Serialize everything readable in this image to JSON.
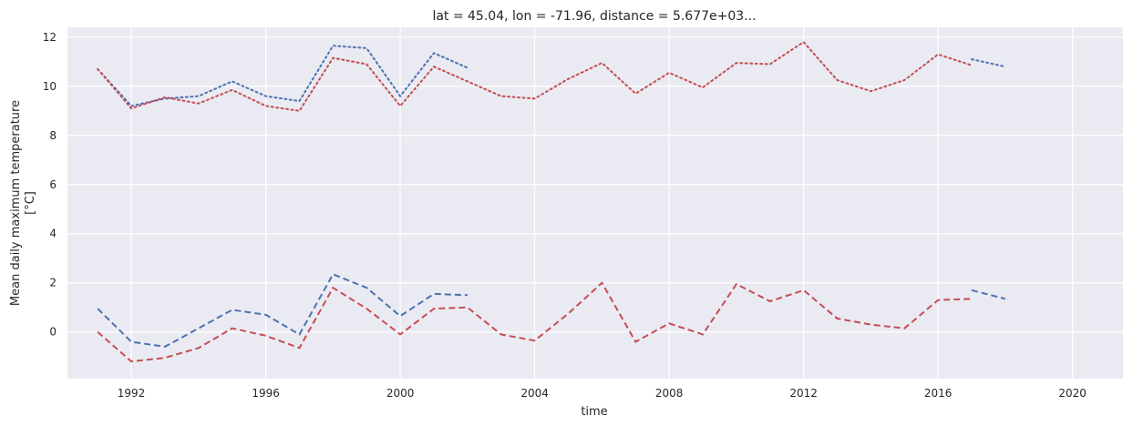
{
  "chart_data": {
    "type": "line",
    "title": "lat = 45.04, lon = -71.96, distance = 5.677e+03...",
    "xlabel": "time",
    "ylabel_lines": [
      "Mean daily maximum temperature",
      "[°C]"
    ],
    "xlim": [
      1990.1,
      2021.5
    ],
    "ylim": [
      -1.9,
      12.4
    ],
    "x_ticks": [
      1992,
      1996,
      2000,
      2004,
      2008,
      2012,
      2016,
      2020
    ],
    "y_ticks": [
      0,
      2,
      4,
      6,
      8,
      10,
      12
    ],
    "grid": true,
    "background": "#EAEAF2",
    "series": [
      {
        "color": "#4C72B0",
        "dash": "dotted",
        "x": [
          1991,
          1992,
          1993,
          1994,
          1995,
          1996,
          1997,
          1998,
          1999,
          2000,
          2001,
          2002,
          2003,
          2004,
          2005,
          2006,
          2007,
          2008,
          2009,
          2010,
          2011,
          2012,
          2013,
          2014,
          2015,
          2016,
          2017,
          2018
        ],
        "y": [
          10.7,
          9.2,
          9.5,
          9.6,
          10.2,
          9.6,
          9.4,
          11.65,
          11.55,
          9.6,
          11.35,
          10.75,
          null,
          null,
          null,
          null,
          null,
          null,
          null,
          null,
          null,
          null,
          null,
          null,
          null,
          null,
          11.1,
          10.8
        ]
      },
      {
        "color": "#C44E52",
        "dash": "dotted",
        "x": [
          1991,
          1992,
          1993,
          1994,
          1995,
          1996,
          1997,
          1998,
          1999,
          2000,
          2001,
          2002,
          2003,
          2004,
          2005,
          2006,
          2007,
          2008,
          2009,
          2010,
          2011,
          2012,
          2013,
          2014,
          2015,
          2016,
          2017,
          2018
        ],
        "y": [
          10.7,
          9.1,
          9.55,
          9.3,
          9.85,
          9.2,
          9.0,
          11.15,
          10.9,
          9.2,
          10.8,
          10.2,
          9.6,
          9.5,
          10.3,
          10.95,
          9.7,
          10.55,
          9.95,
          10.95,
          10.9,
          11.8,
          10.25,
          9.8,
          10.25,
          11.3,
          10.85,
          null
        ]
      },
      {
        "color": "#4C72B0",
        "dash": "dashed",
        "x": [
          1991,
          1992,
          1993,
          1994,
          1995,
          1996,
          1997,
          1998,
          1999,
          2000,
          2001,
          2002,
          2003,
          2004,
          2005,
          2006,
          2007,
          2008,
          2009,
          2010,
          2011,
          2012,
          2013,
          2014,
          2015,
          2016,
          2017,
          2018
        ],
        "y": [
          0.95,
          -0.4,
          -0.6,
          0.15,
          0.9,
          0.7,
          -0.1,
          2.35,
          1.8,
          0.65,
          1.55,
          1.5,
          null,
          null,
          null,
          null,
          null,
          null,
          null,
          null,
          null,
          null,
          null,
          null,
          null,
          null,
          1.7,
          1.35
        ]
      },
      {
        "color": "#C44E52",
        "dash": "dashed",
        "x": [
          1991,
          1992,
          1993,
          1994,
          1995,
          1996,
          1997,
          1998,
          1999,
          2000,
          2001,
          2002,
          2003,
          2004,
          2005,
          2006,
          2007,
          2008,
          2009,
          2010,
          2011,
          2012,
          2013,
          2014,
          2015,
          2016,
          2017,
          2018
        ],
        "y": [
          0.0,
          -1.2,
          -1.05,
          -0.65,
          0.15,
          -0.15,
          -0.65,
          1.8,
          0.95,
          -0.1,
          0.95,
          1.0,
          -0.1,
          -0.35,
          0.75,
          2.0,
          -0.4,
          0.35,
          -0.1,
          1.95,
          1.25,
          1.7,
          0.55,
          0.3,
          0.15,
          1.3,
          1.35,
          null
        ]
      }
    ]
  }
}
